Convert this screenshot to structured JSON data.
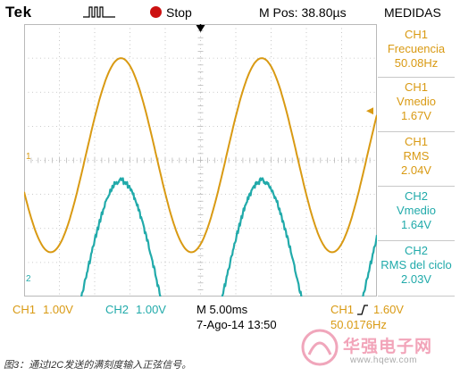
{
  "header": {
    "brand": "Tek",
    "trigger_icon": "pulse-icon",
    "status": "Stop",
    "status_color": "#cc1111",
    "m_pos": "M Pos: 38.80",
    "m_pos_unit": "µs",
    "menu": "MEDIDAS"
  },
  "colors": {
    "ch1": "#d99a13",
    "ch2": "#21aaaa",
    "grid": "#b9b9b9"
  },
  "markers": {
    "ch1": "1",
    "ch2": "2",
    "trigger_position_icon": "arrow-down-icon",
    "trigger_level_icon": "arrow-left-icon"
  },
  "measurements": [
    {
      "channel": "CH1",
      "name": "Frecuencia",
      "value": "50.08Hz"
    },
    {
      "channel": "CH1",
      "name": "Vmedio",
      "value": "1.67V"
    },
    {
      "channel": "CH1",
      "name": "RMS",
      "value": "2.04V"
    },
    {
      "channel": "CH2",
      "name": "Vmedio",
      "value": "1.64V"
    },
    {
      "channel": "CH2",
      "name": "RMS del ciclo",
      "value": "2.03V"
    }
  ],
  "footer": {
    "ch1_label": "CH1",
    "ch1_scale": "1.00V",
    "ch2_label": "CH2",
    "ch2_scale": "1.00V",
    "timebase": "M 5.00ms",
    "date": "7-Ago-14 13:50",
    "trig_channel": "CH1",
    "trig_edge_icon": "rising-edge-icon",
    "trig_level": "1.60V",
    "trig_freq": "50.0176Hz"
  },
  "caption": "图3：通过I2C发送的满刻度输入正弦信号。",
  "watermark": {
    "name": "华强电子网",
    "url": "www.hqew.com"
  },
  "chart_data": {
    "type": "line",
    "x_unit": "divisions",
    "y_unit": "divisions",
    "x_range": [
      0,
      10
    ],
    "y_range": [
      -4,
      4
    ],
    "grid": true,
    "series": [
      {
        "name": "CH1",
        "color": "#d99a13",
        "offset": 0.15,
        "amplitude": 2.85,
        "period": 3.99,
        "phase": 3.53
      },
      {
        "name": "CH2",
        "color": "#21aaaa",
        "offset": -3.45,
        "amplitude": 2.85,
        "period": 3.99,
        "phase": 3.53,
        "stepped": true
      }
    ]
  }
}
